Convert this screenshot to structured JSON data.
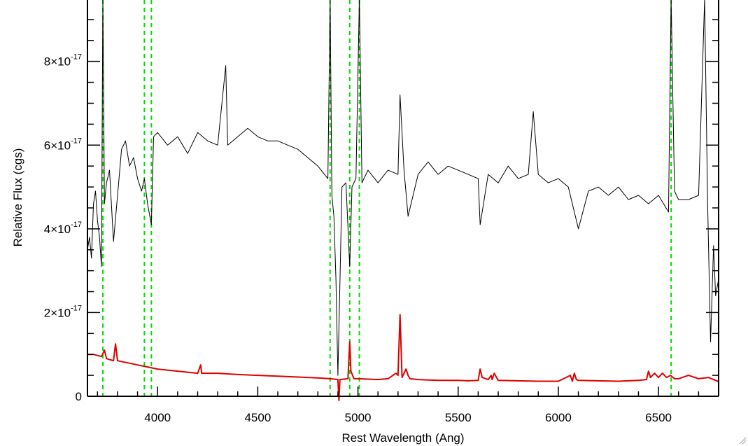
{
  "chart_data": {
    "type": "line",
    "title": "",
    "xlabel": "Rest Wavelength (Ang)",
    "ylabel": "Relative Flux (cgs)",
    "xlim": [
      3650,
      6800
    ],
    "ylim": [
      0,
      9.5e-17
    ],
    "x_ticks": [
      {
        "value": 4000,
        "label": "4000"
      },
      {
        "value": 4500,
        "label": "4500"
      },
      {
        "value": 5000,
        "label": "5000"
      },
      {
        "value": 5500,
        "label": "5500"
      },
      {
        "value": 6000,
        "label": "6000"
      },
      {
        "value": 6500,
        "label": "6500"
      }
    ],
    "y_ticks": [
      {
        "value": 0,
        "mantissa": "0",
        "exponent": ""
      },
      {
        "value": 2e-17,
        "mantissa": "2×10",
        "exponent": "-17"
      },
      {
        "value": 4e-17,
        "mantissa": "4×10",
        "exponent": "-17"
      },
      {
        "value": 6e-17,
        "mantissa": "6×10",
        "exponent": "-17"
      },
      {
        "value": 8e-17,
        "mantissa": "8×10",
        "exponent": "-17"
      }
    ],
    "grid": false,
    "vertical_lines": {
      "color": "#00dd00",
      "style": "dashed",
      "x": [
        3727,
        3934,
        3969,
        4861,
        4959,
        5007,
        6563
      ]
    },
    "series": [
      {
        "color": "#000000",
        "x": [
          3650,
          3660,
          3670,
          3680,
          3690,
          3700,
          3710,
          3720,
          3727,
          3735,
          3745,
          3760,
          3780,
          3800,
          3820,
          3840,
          3860,
          3880,
          3900,
          3920,
          3934,
          3950,
          3969,
          3980,
          4000,
          4050,
          4100,
          4150,
          4200,
          4250,
          4300,
          4340,
          4350,
          4400,
          4450,
          4500,
          4550,
          4600,
          4650,
          4700,
          4750,
          4800,
          4850,
          4861,
          4870,
          4880,
          4890,
          4900,
          4910,
          4920,
          4940,
          4959,
          4970,
          4990,
          5007,
          5020,
          5050,
          5100,
          5150,
          5200,
          5210,
          5230,
          5250,
          5300,
          5350,
          5400,
          5450,
          5500,
          5550,
          5600,
          5610,
          5650,
          5700,
          5750,
          5800,
          5850,
          5875,
          5900,
          5950,
          6000,
          6050,
          6100,
          6150,
          6200,
          6250,
          6300,
          6350,
          6400,
          6450,
          6500,
          6550,
          6563,
          6580,
          6600,
          6650,
          6700,
          6730,
          6745,
          6760,
          6775,
          6785,
          6800
        ],
        "y": [
          3.5e-17,
          3.8e-17,
          3.3e-17,
          4.6e-17,
          4.9e-17,
          4.2e-17,
          3.8e-17,
          3.1e-17,
          9.5e-17,
          4.6e-17,
          5.1e-17,
          5.4e-17,
          3.7e-17,
          4.8e-17,
          5.9e-17,
          6.1e-17,
          5.5e-17,
          5.7e-17,
          5.2e-17,
          4.9e-17,
          5.2e-17,
          4.6e-17,
          4.1e-17,
          6.2e-17,
          6.3e-17,
          6e-17,
          6.2e-17,
          5.8e-17,
          6.3e-17,
          6.1e-17,
          6e-17,
          7.9e-17,
          6e-17,
          6.2e-17,
          6.4e-17,
          6.2e-17,
          6.1e-17,
          6.1e-17,
          6e-17,
          5.9e-17,
          5.7e-17,
          5.5e-17,
          5.2e-17,
          9.5e-17,
          4.8e-17,
          4.3e-17,
          2.8e-17,
          5e-18,
          2.7e-17,
          5e-17,
          5.1e-17,
          3.1e-17,
          5e-17,
          5.2e-17,
          9.5e-17,
          5.1e-17,
          5.4e-17,
          5.1e-17,
          5.4e-17,
          5.3e-17,
          7.2e-17,
          5.4e-17,
          4.3e-17,
          5.3e-17,
          5.6e-17,
          5.3e-17,
          5.5e-17,
          5.4e-17,
          5.3e-17,
          5.2e-17,
          4.1e-17,
          5.3e-17,
          5.1e-17,
          5.5e-17,
          5.2e-17,
          5.3e-17,
          6.8e-17,
          5.3e-17,
          5.1e-17,
          5.2e-17,
          5e-17,
          4e-17,
          4.9e-17,
          5e-17,
          4.8e-17,
          5e-17,
          4.7e-17,
          4.8e-17,
          4.6e-17,
          4.8e-17,
          4.4e-17,
          9.5e-17,
          4.9e-17,
          4.7e-17,
          4.7e-17,
          4.8e-17,
          9.5e-17,
          4.6e-17,
          1.3e-17,
          3.6e-17,
          2.4e-17,
          2.8e-17
        ]
      },
      {
        "color": "#dd0000",
        "x": [
          3650,
          3680,
          3720,
          3735,
          3745,
          3780,
          3790,
          3800,
          3850,
          3900,
          3950,
          4000,
          4100,
          4200,
          4215,
          4220,
          4225,
          4300,
          4400,
          4500,
          4600,
          4700,
          4800,
          4861,
          4900,
          4905,
          4910,
          4950,
          4959,
          4965,
          4980,
          5000,
          5100,
          5150,
          5190,
          5200,
          5210,
          5220,
          5240,
          5250,
          5260,
          5300,
          5400,
          5500,
          5550,
          5600,
          5610,
          5620,
          5650,
          5665,
          5670,
          5680,
          5700,
          5800,
          5900,
          6000,
          6060,
          6070,
          6080,
          6090,
          6100,
          6200,
          6300,
          6400,
          6440,
          6450,
          6460,
          6480,
          6500,
          6520,
          6540,
          6560,
          6580,
          6600,
          6650,
          6700,
          6750,
          6800
        ],
        "y": [
          1e-17,
          1e-17,
          9.5e-18,
          1.1e-17,
          9e-18,
          8.5e-18,
          1.25e-17,
          8.5e-18,
          8e-18,
          7.5e-18,
          7e-18,
          6.5e-18,
          6e-18,
          5.5e-18,
          7.5e-18,
          5.5e-18,
          5.5e-18,
          5.5e-18,
          5.2e-18,
          5e-18,
          4.8e-18,
          4.6e-18,
          4.4e-18,
          4.2e-18,
          4e-18,
          -1e-18,
          4e-18,
          4.2e-18,
          1.3e-17,
          6e-18,
          4.2e-18,
          4.2e-18,
          4e-18,
          4.2e-18,
          5.5e-18,
          5e-18,
          1.95e-17,
          4.5e-18,
          6.5e-18,
          5e-18,
          4.2e-18,
          4e-18,
          3.8e-18,
          3.8e-18,
          3.7e-18,
          3.8e-18,
          6.5e-18,
          4.5e-18,
          4e-18,
          5e-18,
          4e-18,
          5.5e-18,
          3.8e-18,
          3.7e-18,
          3.6e-18,
          3.6e-18,
          5e-18,
          3.6e-18,
          5.5e-18,
          4e-18,
          3.8e-18,
          3.7e-18,
          3.6e-18,
          3.8e-18,
          4e-18,
          6e-18,
          4.5e-18,
          5.5e-18,
          4.5e-18,
          5.5e-18,
          4.5e-18,
          5e-18,
          4.2e-18,
          4.2e-18,
          5e-18,
          4.2e-18,
          4.5e-18,
          3.5e-18
        ]
      }
    ]
  }
}
